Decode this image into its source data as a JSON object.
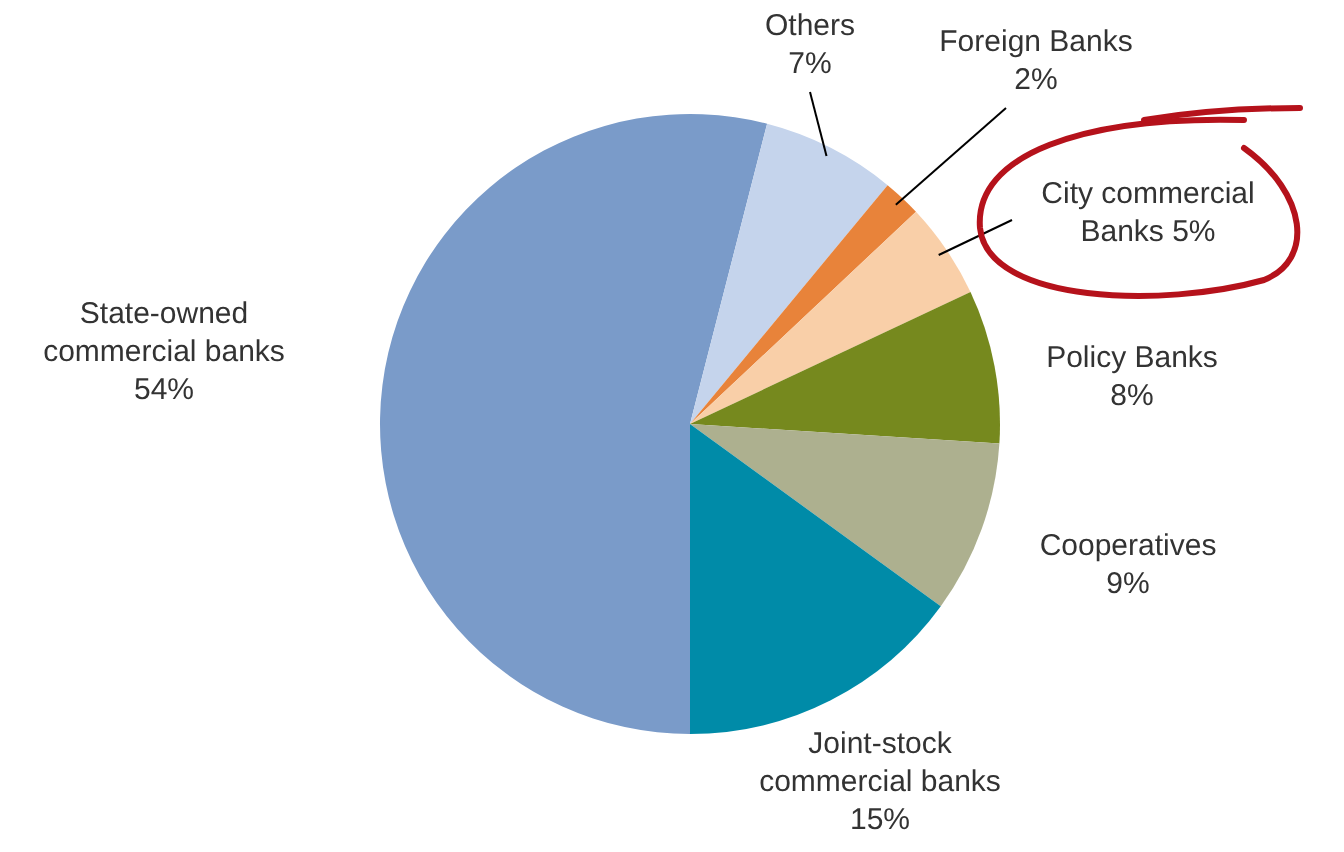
{
  "chart_data": {
    "type": "pie",
    "categories": [
      "State-owned commercial banks",
      "Others",
      "Foreign Banks",
      "City commercial Banks",
      "Policy Banks",
      "Cooperatives",
      "Joint-stock commercial banks"
    ],
    "values": [
      54,
      7,
      2,
      5,
      8,
      9,
      15
    ],
    "value_labels": [
      "54%",
      "7%",
      "2%",
      "5%",
      "8%",
      "9%",
      "15%"
    ],
    "colors": [
      "#7a9bc9",
      "#c5d4ec",
      "#e8833a",
      "#f9cfa8",
      "#76891e",
      "#adb08f",
      "#008ba8"
    ],
    "legend": false
  }
}
